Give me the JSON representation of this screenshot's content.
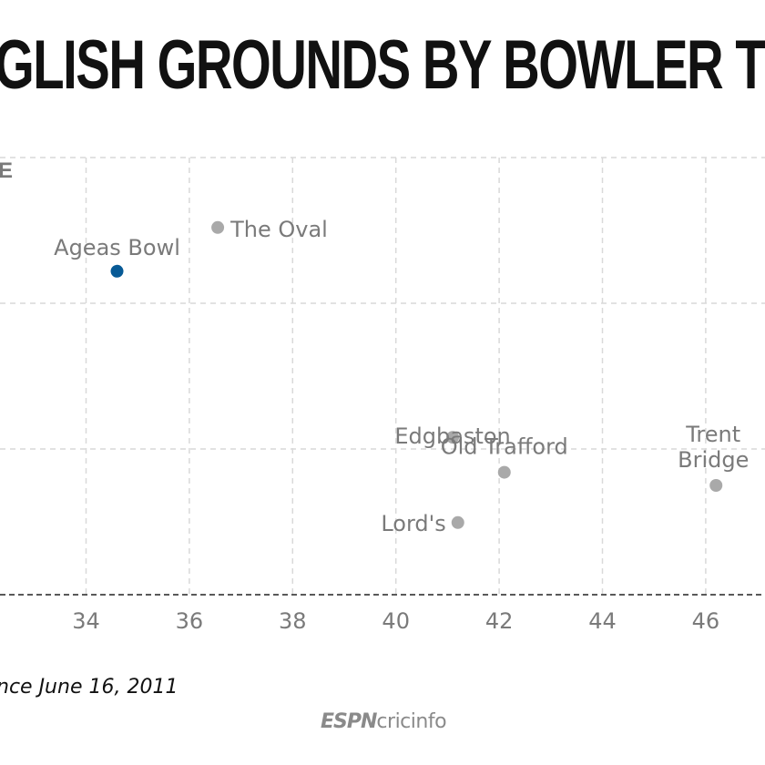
{
  "title": "GLISH GROUNDS BY BOWLER TY",
  "y_label_fragment": "E",
  "footnote": "nce June 16, 2011",
  "brand": {
    "espn": "ESPN",
    "cricinfo": "cricinfo"
  },
  "colors": {
    "highlight": "#075a96",
    "point": "#a9a9a9",
    "label": "#7a7a7a",
    "grid": "#d9d9d9",
    "axis": "#222222"
  },
  "chart_data": {
    "type": "scatter",
    "xlim": [
      32,
      48
    ],
    "ylim": [
      0,
      10
    ],
    "x_ticks": [
      34,
      36,
      38,
      40,
      42,
      44,
      46
    ],
    "grid": true,
    "points": [
      {
        "label": "Ageas Bowl",
        "x": 34.6,
        "y": 7.4,
        "highlight": true
      },
      {
        "label": "The Oval",
        "x": 36.55,
        "y": 8.4,
        "highlight": false
      },
      {
        "label": "Edgbaston",
        "x": 41.1,
        "y": 3.6,
        "highlight": false
      },
      {
        "label": "Old Trafford",
        "x": 42.1,
        "y": 2.8,
        "highlight": false
      },
      {
        "label": "Lord's",
        "x": 41.2,
        "y": 1.65,
        "highlight": false
      },
      {
        "label": "Trent Bridge",
        "x": 46.2,
        "y": 2.5,
        "highlight": false
      }
    ]
  }
}
